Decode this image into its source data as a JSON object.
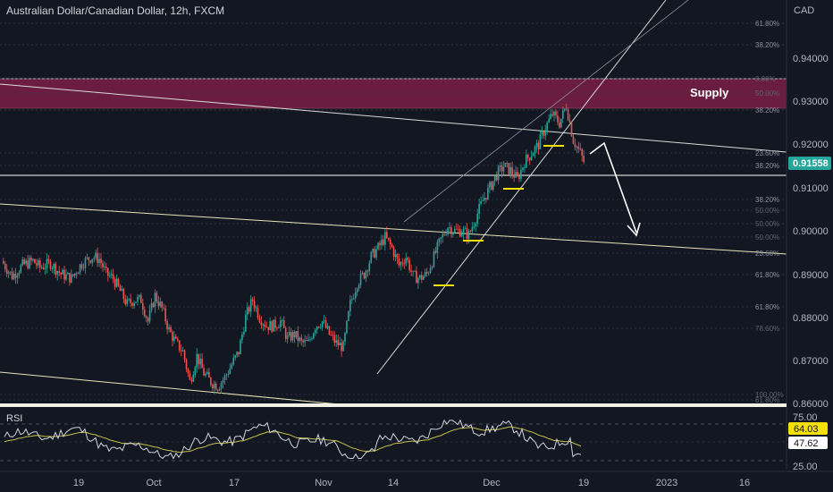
{
  "header": {
    "title": "Australian Dollar/Canadian Dollar, 12h, FXCM",
    "currency": "CAD"
  },
  "price_axis": {
    "ticks": [
      "0.94000",
      "0.93000",
      "0.92000",
      "0.91000",
      "0.90000",
      "0.89000",
      "0.88000",
      "0.87000",
      "0.86000"
    ],
    "current_price": "0.91558"
  },
  "fib_labels": [
    {
      "text": "61.80%"
    },
    {
      "text": "38.20%"
    },
    {
      "text": "0.00%",
      "faint": true
    },
    {
      "text": "50.00%",
      "faint": true
    },
    {
      "text": "38.20%"
    },
    {
      "text": "23.60%"
    },
    {
      "text": "38.20%"
    },
    {
      "text": "38.20%"
    },
    {
      "text": "50.00%",
      "faint": true
    },
    {
      "text": "50.00%",
      "faint": true
    },
    {
      "text": "50.00%",
      "faint": true
    },
    {
      "text": "23.60%"
    },
    {
      "text": "61.80%"
    },
    {
      "text": "61.80%"
    },
    {
      "text": "78.60%",
      "faint": true
    },
    {
      "text": "100.00%",
      "faint": true
    },
    {
      "text": "61.80%",
      "faint": true
    }
  ],
  "annotations": {
    "supply_label": "Supply"
  },
  "rsi": {
    "label": "RSI",
    "value": "64.03",
    "value2": "47.62",
    "ticks": [
      "75.00",
      "25.00"
    ]
  },
  "time_axis": {
    "labels": [
      "19",
      "Oct",
      "17",
      "Nov",
      "14",
      "Dec",
      "19",
      "2023",
      "16"
    ]
  },
  "colors": {
    "background": "#131722",
    "up": "#26a69a",
    "down": "#ef5350",
    "supply_zone": "#7a1f45",
    "rsi_line": "#d1d4dc",
    "rsi_ma": "#c8c24a",
    "price_badge": "#26a69a",
    "arrow": "#ffffff",
    "swing_markers": "#f5e000"
  }
}
